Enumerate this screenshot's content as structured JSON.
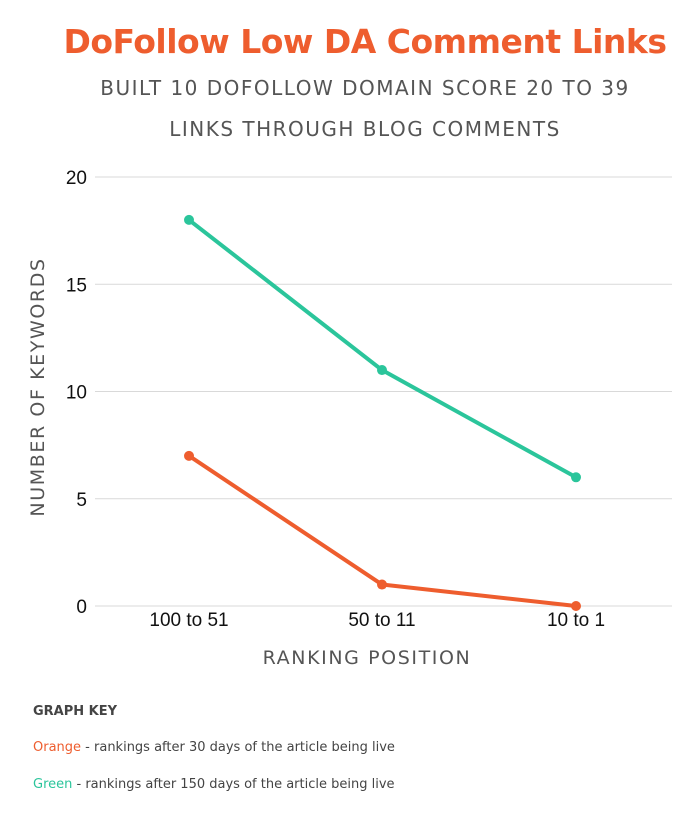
{
  "header": {
    "title": "DoFollow Low DA Comment Links",
    "subtitle_line1": "BUILT 10 DOFOLLOW DOMAIN SCORE 20 TO 39",
    "subtitle_line2": "LINKS THROUGH BLOG COMMENTS"
  },
  "chart_data": {
    "type": "line",
    "title": "DoFollow Low DA Comment Links",
    "subtitle": "BUILT 10 DOFOLLOW DOMAIN SCORE 20 TO 39 LINKS THROUGH BLOG COMMENTS",
    "xlabel": "RANKING POSITION",
    "ylabel": "NUMBER OF KEYWORDS",
    "categories": [
      "100 to 51",
      "50 to 11",
      "10 to 1"
    ],
    "ylim": [
      0,
      20
    ],
    "yticks": [
      0,
      5,
      10,
      15,
      20
    ],
    "grid": true,
    "series": [
      {
        "key": "green",
        "color": "#2bc59b",
        "values": [
          18,
          11,
          6
        ]
      },
      {
        "key": "orange",
        "color": "#ee5d2e",
        "values": [
          7,
          1,
          0
        ]
      }
    ]
  },
  "graph_key": {
    "heading": "GRAPH KEY",
    "orange_word": "Orange",
    "orange_text": " - rankings after 30 days of the article being live",
    "green_word": "Green",
    "green_text": " - rankings after 150 days of the article being live"
  }
}
